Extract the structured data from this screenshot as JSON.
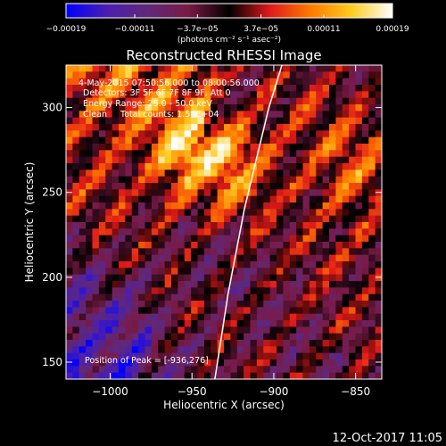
{
  "chart_data": {
    "type": "heatmap",
    "title": "Reconstructed RHESSI Image",
    "xlabel": "Heliocentric X (arcsec)",
    "ylabel": "Heliocentric Y (arcsec)",
    "xlim": [
      -1027,
      -834
    ],
    "ylim": [
      140,
      325
    ],
    "x_ticks": [
      {
        "value": -1000,
        "label": "−1000"
      },
      {
        "value": -950,
        "label": "−950"
      },
      {
        "value": -900,
        "label": "−900"
      },
      {
        "value": -850,
        "label": "−850"
      }
    ],
    "y_ticks": [
      {
        "value": 150,
        "label": "150"
      },
      {
        "value": 200,
        "label": "200"
      },
      {
        "value": 250,
        "label": "250"
      },
      {
        "value": 300,
        "label": "300"
      }
    ],
    "colorbar": {
      "range": [
        -0.00019,
        0.00019
      ],
      "tick_labels": [
        {
          "value": -0.00019,
          "label": "−0.00019"
        },
        {
          "value": -0.00011,
          "label": "−0.00011"
        },
        {
          "value": -3.7e-05,
          "label": "−3.7e−05"
        },
        {
          "value": 3.7e-05,
          "label": "3.7e−05"
        },
        {
          "value": 0.00011,
          "label": "0.00011"
        },
        {
          "value": 0.00019,
          "label": "0.00019"
        }
      ],
      "unit_label": "(photons cm⁻² s⁻¹ asec⁻²)",
      "colors": [
        "#0000ff",
        "#4a1fb0",
        "#602878",
        "#7a1a46",
        "#000000",
        "#e01a1a",
        "#ff7a00",
        "#ffcc20",
        "#ffffff"
      ]
    },
    "limb_curve": [
      [
        -936,
        140
      ],
      [
        -928,
        190
      ],
      [
        -918,
        240
      ],
      [
        -903,
        300
      ],
      [
        -895,
        325
      ]
    ],
    "annotations": {
      "time_range": "4-May-2015 07:50:56.000 to 08:00:56.000",
      "detectors": "Detectors: 3F 5F 6F 7F 8F 9F, Att 0",
      "energy_range": "Energy Range: 25.0 - 50.0 keV",
      "method_counts": "Clean     Total counts: 1.58E+04",
      "peak": "Position of Peak = [-936,276]"
    },
    "grid": false,
    "legend": "none"
  },
  "footer": {
    "timestamp": "12-Oct-2017 11:05"
  }
}
